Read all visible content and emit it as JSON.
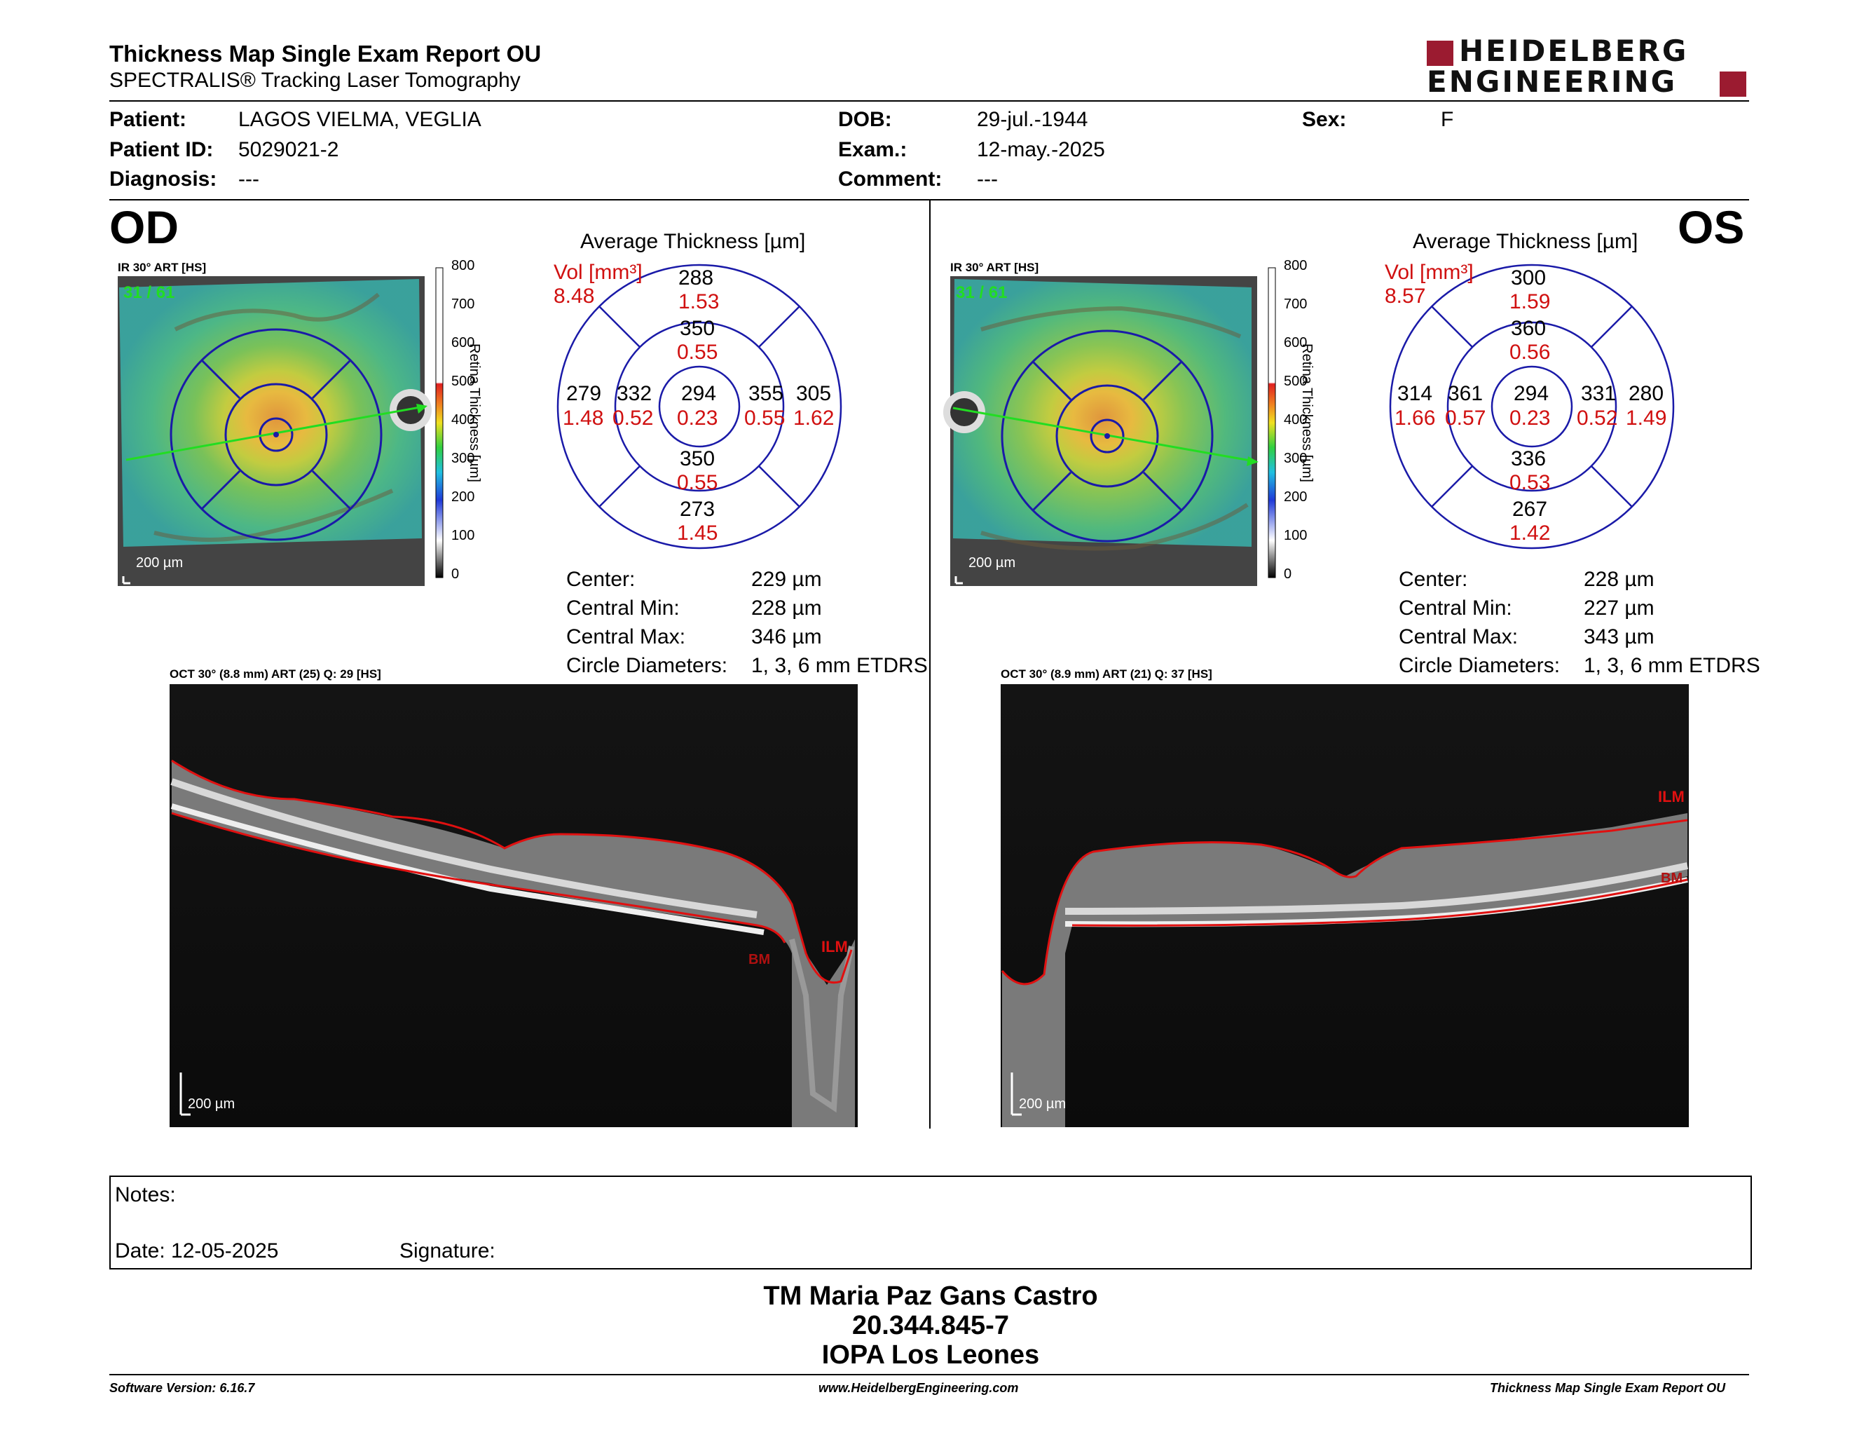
{
  "header": {
    "title": "Thickness Map Single Exam Report OU",
    "subtitle": "SPECTRALIS® Tracking Laser Tomography",
    "logo_line1": "HEIDELBERG",
    "logo_line2": "ENGINEERING",
    "logo_color": "#9b1b30"
  },
  "patient": {
    "patient_label": "Patient:",
    "patient_value": "LAGOS VIELMA, VEGLIA",
    "id_label": "Patient ID:",
    "id_value": "5029021-2",
    "diagnosis_label": "Diagnosis:",
    "diagnosis_value": "---",
    "dob_label": "DOB:",
    "dob_value": "29-jul.-1944",
    "exam_label": "Exam.:",
    "exam_value": "12-may.-2025",
    "comment_label": "Comment:",
    "comment_value": "---",
    "sex_label": "Sex:",
    "sex_value": "F"
  },
  "colorbar": {
    "ticks": [
      "800",
      "700",
      "600",
      "500",
      "400",
      "300",
      "200",
      "100",
      "0"
    ],
    "label": "Retina  Thickness [µm]"
  },
  "od": {
    "eye": "OD",
    "ir_label": "IR 30° ART [HS]",
    "frames": "31 / 61",
    "scale": "200 µm",
    "avg_title": "Average Thickness [µm]",
    "vol_label": "Vol [mm³]",
    "vol_value": "8.48",
    "sectors": {
      "outer_top": {
        "t": "288",
        "v": "1.53"
      },
      "inner_top": {
        "t": "350",
        "v": "0.55"
      },
      "outer_left": {
        "t": "279",
        "v": "1.48"
      },
      "inner_left": {
        "t": "332",
        "v": "0.52"
      },
      "center": {
        "t": "294",
        "v": "0.23"
      },
      "inner_right": {
        "t": "355",
        "v": "0.55"
      },
      "outer_right": {
        "t": "305",
        "v": "1.62"
      },
      "inner_bottom": {
        "t": "350",
        "v": "0.55"
      },
      "outer_bottom": {
        "t": "273",
        "v": "1.45"
      }
    },
    "stats": {
      "center_label": "Center:",
      "center_value": "229 µm",
      "min_label": "Central Min:",
      "min_value": "228 µm",
      "max_label": "Central Max:",
      "max_value": "346 µm",
      "diam_label": "Circle Diameters:",
      "diam_value": "1, 3, 6 mm ETDRS"
    },
    "oct_label": "OCT 30° (8.8 mm) ART (25) Q: 29 [HS]",
    "oct_scale": "200 µm",
    "ilm": "ILM",
    "bm": "BM"
  },
  "os": {
    "eye": "OS",
    "ir_label": "IR 30° ART [HS]",
    "frames": "31 / 61",
    "scale": "200 µm",
    "avg_title": "Average Thickness [µm]",
    "vol_label": "Vol [mm³]",
    "vol_value": "8.57",
    "sectors": {
      "outer_top": {
        "t": "300",
        "v": "1.59"
      },
      "inner_top": {
        "t": "360",
        "v": "0.56"
      },
      "outer_left": {
        "t": "314",
        "v": "1.66"
      },
      "inner_left": {
        "t": "361",
        "v": "0.57"
      },
      "center": {
        "t": "294",
        "v": "0.23"
      },
      "inner_right": {
        "t": "331",
        "v": "0.52"
      },
      "outer_right": {
        "t": "280",
        "v": "1.49"
      },
      "inner_bottom": {
        "t": "336",
        "v": "0.53"
      },
      "outer_bottom": {
        "t": "267",
        "v": "1.42"
      }
    },
    "stats": {
      "center_label": "Center:",
      "center_value": "228 µm",
      "min_label": "Central Min:",
      "min_value": "227 µm",
      "max_label": "Central Max:",
      "max_value": "343 µm",
      "diam_label": "Circle Diameters:",
      "diam_value": "1, 3, 6 mm ETDRS"
    },
    "oct_label": "OCT 30° (8.9 mm) ART (21) Q: 37 [HS]",
    "oct_scale": "200 µm",
    "ilm": "ILM",
    "bm": "BM"
  },
  "notes": {
    "notes_label": "Notes:",
    "date_label": "Date: 12-05-2025",
    "signature_label": "Signature:"
  },
  "signer": {
    "name": "TM Maria Paz Gans Castro",
    "rut": "20.344.845-7",
    "place": "IOPA Los Leones"
  },
  "footer": {
    "software": "Software Version: 6.16.7",
    "website": "www.HeidelbergEngineering.com",
    "report": "Thickness Map Single Exam Report OU"
  },
  "colors": {
    "etdrs_blue": "#1a1aa8",
    "volume_red": "#d01010",
    "segmentation_red": "#e01010",
    "frames_green": "#22dd22"
  }
}
